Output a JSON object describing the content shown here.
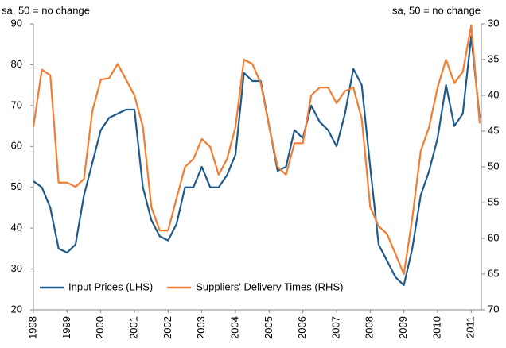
{
  "chart_data": {
    "type": "line",
    "y_label": "sa, 50 = no change",
    "y2_label": "sa, 50 = no change",
    "x": [
      1998.0,
      1998.25,
      1998.5,
      1998.75,
      1999.0,
      1999.25,
      1999.5,
      1999.75,
      2000.0,
      2000.25,
      2000.5,
      2000.75,
      2001.0,
      2001.25,
      2001.5,
      2001.75,
      2002.0,
      2002.25,
      2002.5,
      2002.75,
      2003.0,
      2003.25,
      2003.5,
      2003.75,
      2004.0,
      2004.25,
      2004.5,
      2004.75,
      2005.0,
      2005.25,
      2005.5,
      2005.75,
      2006.0,
      2006.25,
      2006.5,
      2006.75,
      2007.0,
      2007.25,
      2007.5,
      2007.75,
      2008.0,
      2008.25,
      2008.5,
      2008.75,
      2009.0,
      2009.25,
      2009.5,
      2009.75,
      2010.0,
      2010.25,
      2010.5,
      2010.75,
      2011.0,
      2011.25
    ],
    "series": [
      {
        "name": "Input Prices (LHS)",
        "color": "#1f5a8c",
        "axis": "y",
        "values": [
          51.5,
          50,
          45,
          35,
          34,
          36,
          48,
          56,
          64,
          67,
          68,
          69,
          69,
          50,
          42,
          38,
          37,
          41,
          50,
          50,
          55,
          50,
          50,
          53,
          58,
          78,
          76,
          76,
          65,
          54,
          55,
          64,
          62,
          70,
          66,
          64,
          60,
          68,
          79,
          75,
          55,
          36,
          32,
          28,
          26,
          35,
          48,
          54,
          62,
          75,
          65,
          68,
          87,
          67
        ]
      },
      {
        "name": "Suppliers' Delivery Times (RHS)",
        "color": "#f47c30",
        "axis": "y2",
        "values": [
          44.4,
          36.4,
          37.2,
          52.2,
          52.2,
          52.8,
          51.7,
          42.2,
          37.8,
          37.6,
          35.6,
          37.8,
          40,
          44.4,
          55.6,
          58.9,
          58.9,
          54.4,
          50,
          48.9,
          46.1,
          47.2,
          51.1,
          48.9,
          44.4,
          35,
          35.6,
          38.3,
          44.4,
          50,
          51.1,
          46.7,
          46.7,
          40,
          38.9,
          38.9,
          41.1,
          39.4,
          38.9,
          43.3,
          55.6,
          58.3,
          59.4,
          62.2,
          65,
          57.2,
          47.8,
          44.4,
          38.9,
          35,
          38.3,
          36.7,
          30.2,
          43.9
        ]
      }
    ],
    "xlim": [
      1998,
      2011.3
    ],
    "xticks": [
      1998,
      1999,
      2000,
      2001,
      2002,
      2003,
      2004,
      2005,
      2006,
      2007,
      2008,
      2009,
      2010,
      2011
    ],
    "ylim": [
      20,
      90
    ],
    "yticks": [
      20,
      30,
      40,
      50,
      60,
      70,
      80,
      90
    ],
    "y2lim": [
      70,
      30
    ],
    "y2ticks": [
      30,
      35,
      40,
      45,
      50,
      55,
      60,
      65,
      70
    ],
    "grid": false,
    "legend": "lower left"
  }
}
